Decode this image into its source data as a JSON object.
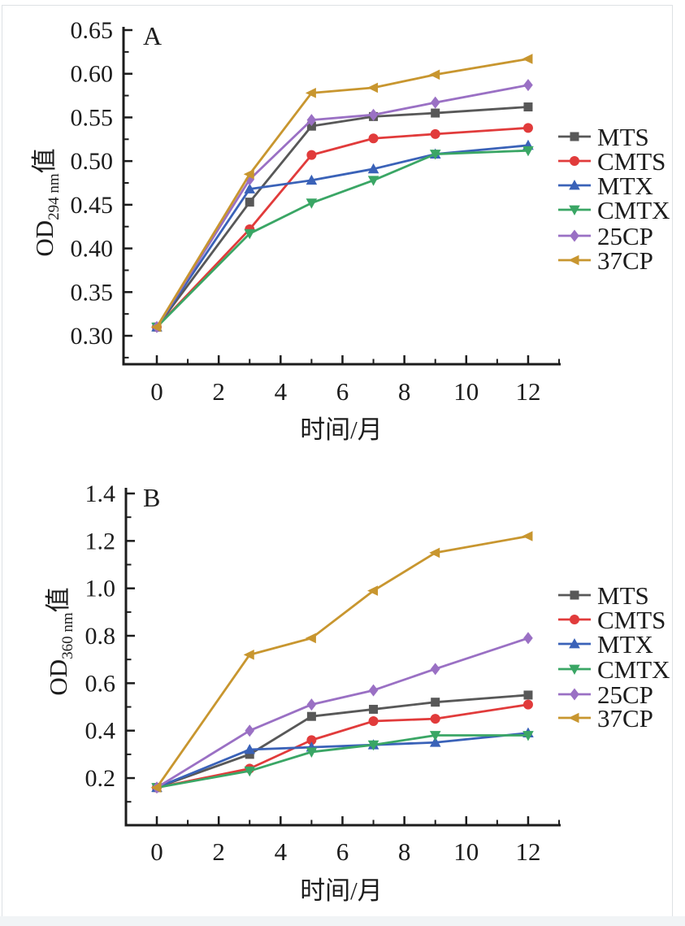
{
  "figure": {
    "background": "#ffffff",
    "border_color": "#dde1e4",
    "axis_color": "#1c1c1c",
    "text_color": "#1c1c1c"
  },
  "chart_data": [
    {
      "type": "line",
      "panel_label": "A",
      "xlabel": "时间/月",
      "ylabel": {
        "main": "OD",
        "sub": "294 nm",
        "suffix": "值"
      },
      "x": [
        0,
        3,
        5,
        7,
        9,
        12
      ],
      "x_tick_labels": [
        "0",
        "2",
        "4",
        "6",
        "8",
        "10",
        "12"
      ],
      "x_ticks": [
        0,
        2,
        4,
        6,
        8,
        10,
        12
      ],
      "x_minor_ticks": [
        1,
        3,
        5,
        7,
        9,
        11,
        13
      ],
      "xlim": [
        0,
        13
      ],
      "ylim": [
        0.275,
        0.66
      ],
      "y_tick_labels": [
        "0.65",
        "0.60",
        "0.55",
        "0.50",
        "0.45",
        "0.40",
        "0.35",
        "0.30"
      ],
      "y_ticks": [
        0.65,
        0.6,
        0.55,
        0.5,
        0.45,
        0.4,
        0.35,
        0.3
      ],
      "y_minor_ticks": [
        0.625,
        0.575,
        0.525,
        0.475,
        0.425,
        0.375,
        0.325,
        0.275
      ],
      "grid": false,
      "legend_position": "right",
      "series": [
        {
          "name": "MTS",
          "color": "#585858",
          "marker": "square",
          "values": [
            0.31,
            0.453,
            0.54,
            0.551,
            0.555,
            0.562
          ]
        },
        {
          "name": "CMTS",
          "color": "#e13b3b",
          "marker": "circle",
          "values": [
            0.31,
            0.422,
            0.507,
            0.526,
            0.531,
            0.538
          ]
        },
        {
          "name": "MTX",
          "color": "#3a62b8",
          "marker": "triangle-up",
          "values": [
            0.31,
            0.468,
            0.478,
            0.491,
            0.508,
            0.518
          ]
        },
        {
          "name": "CMTX",
          "color": "#3aa665",
          "marker": "triangle-down",
          "values": [
            0.31,
            0.417,
            0.452,
            0.478,
            0.508,
            0.512
          ]
        },
        {
          "name": "25CP",
          "color": "#9a70c4",
          "marker": "diamond",
          "values": [
            0.31,
            0.479,
            0.547,
            0.553,
            0.567,
            0.587
          ]
        },
        {
          "name": "37CP",
          "color": "#c8962f",
          "marker": "triangle-left",
          "values": [
            0.31,
            0.485,
            0.578,
            0.584,
            0.599,
            0.617
          ]
        }
      ]
    },
    {
      "type": "line",
      "panel_label": "B",
      "xlabel": "时间/月",
      "ylabel": {
        "main": "OD",
        "sub": "360 nm",
        "suffix": "值"
      },
      "x": [
        0,
        3,
        5,
        7,
        9,
        12
      ],
      "x_tick_labels": [
        "0",
        "2",
        "4",
        "6",
        "8",
        "10",
        "12"
      ],
      "x_ticks": [
        0,
        2,
        4,
        6,
        8,
        10,
        12
      ],
      "x_minor_ticks": [
        1,
        3,
        5,
        7,
        9,
        11,
        13
      ],
      "xlim": [
        0,
        13
      ],
      "ylim": [
        0.0,
        1.42
      ],
      "y_tick_labels": [
        "1.4",
        "1.2",
        "1.0",
        "0.8",
        "0.6",
        "0.4",
        "0.2"
      ],
      "y_ticks": [
        1.4,
        1.2,
        1.0,
        0.8,
        0.6,
        0.4,
        0.2
      ],
      "y_minor_ticks": [
        1.3,
        1.1,
        0.9,
        0.7,
        0.5,
        0.3,
        0.1
      ],
      "grid": false,
      "legend_position": "right",
      "series": [
        {
          "name": "MTS",
          "color": "#585858",
          "marker": "square",
          "values": [
            0.16,
            0.3,
            0.46,
            0.49,
            0.52,
            0.55
          ]
        },
        {
          "name": "CMTS",
          "color": "#e13b3b",
          "marker": "circle",
          "values": [
            0.16,
            0.24,
            0.36,
            0.44,
            0.45,
            0.51
          ]
        },
        {
          "name": "MTX",
          "color": "#3a62b8",
          "marker": "triangle-up",
          "values": [
            0.16,
            0.32,
            0.33,
            0.34,
            0.35,
            0.39
          ]
        },
        {
          "name": "CMTX",
          "color": "#3aa665",
          "marker": "triangle-down",
          "values": [
            0.16,
            0.23,
            0.31,
            0.34,
            0.38,
            0.38
          ]
        },
        {
          "name": "25CP",
          "color": "#9a70c4",
          "marker": "diamond",
          "values": [
            0.16,
            0.4,
            0.51,
            0.57,
            0.66,
            0.79
          ]
        },
        {
          "name": "37CP",
          "color": "#c8962f",
          "marker": "triangle-left",
          "values": [
            0.16,
            0.72,
            0.79,
            0.99,
            1.15,
            1.22
          ]
        }
      ]
    }
  ]
}
